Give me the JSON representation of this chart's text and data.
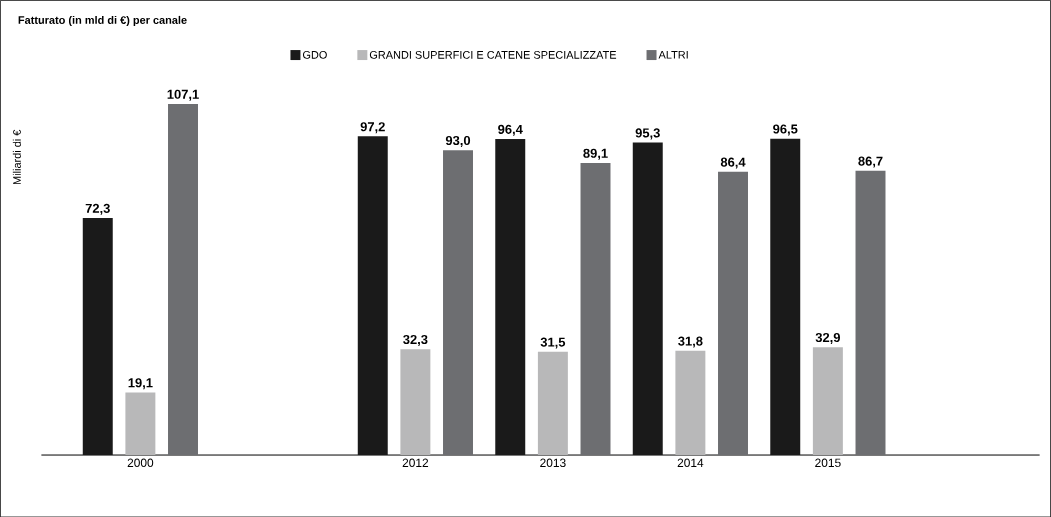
{
  "chart_data": {
    "type": "bar",
    "title": "Fatturato (in mld di €) per canale",
    "ylabel": "Miliardi di €",
    "categories": [
      "2000",
      null,
      "2012",
      "2013",
      "2014",
      "2015"
    ],
    "legend": "top",
    "series": [
      {
        "name": "GDO",
        "color": "#1a1a1a",
        "values": [
          72.3,
          null,
          97.2,
          96.4,
          95.3,
          96.5
        ],
        "value_labels": [
          "72,3",
          null,
          "97,2",
          "96,4",
          "95,3",
          "96,5"
        ]
      },
      {
        "name": "GRANDI SUPERFICI E CATENE SPECIALIZZATE",
        "color": "#b8b8b9",
        "values": [
          19.1,
          null,
          32.3,
          31.5,
          31.8,
          32.9
        ],
        "value_labels": [
          "19,1",
          null,
          "32,3",
          "31,5",
          "31,8",
          "32,9"
        ]
      },
      {
        "name": "ALTRI",
        "color": "#6d6e71",
        "values": [
          107.1,
          null,
          93.0,
          89.1,
          86.4,
          86.7
        ],
        "value_labels": [
          "107,1",
          null,
          "93,0",
          "89,1",
          "86,4",
          "86,7"
        ]
      }
    ]
  }
}
